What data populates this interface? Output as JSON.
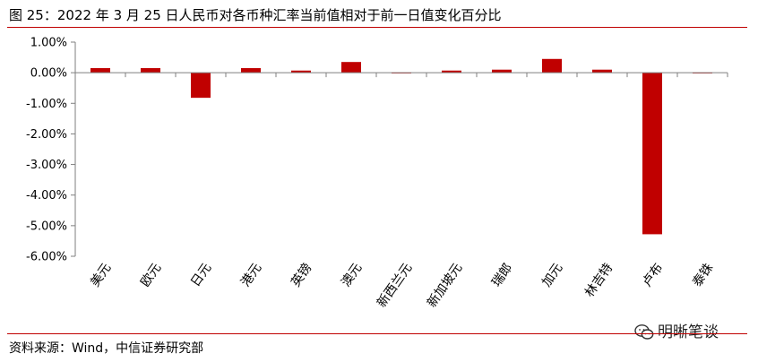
{
  "title": "图 25：2022 年 3 月 25 日人民币对各币种汇率当前值相对于前一日值变化百分比",
  "source": "资料来源：Wind，中信证券研究部",
  "watermark": "明晰笔谈",
  "icons": {
    "watermark": "wechat-icon"
  },
  "colors": {
    "bar": "#c00000",
    "rule": "#c00000"
  },
  "chart_data": {
    "type": "bar",
    "categories": [
      "美元",
      "欧元",
      "日元",
      "港元",
      "英镑",
      "澳元",
      "新西兰元",
      "新加坡元",
      "瑞郎",
      "加元",
      "林吉特",
      "卢布",
      "泰铢"
    ],
    "values": [
      0.15,
      0.15,
      -0.82,
      0.15,
      0.07,
      0.35,
      0.0,
      0.07,
      0.1,
      0.45,
      0.1,
      -5.28,
      -0.02
    ],
    "ylim": [
      -6.0,
      1.0
    ],
    "yticks": [
      1.0,
      0.0,
      -1.0,
      -2.0,
      -3.0,
      -4.0,
      -5.0,
      -6.0
    ],
    "ytick_labels": [
      "1.00%",
      "0.00%",
      "-1.00%",
      "-2.00%",
      "-3.00%",
      "-4.00%",
      "-5.00%",
      "-6.00%"
    ],
    "grid": false,
    "legend": "none",
    "title": "",
    "xlabel": "",
    "ylabel": ""
  }
}
